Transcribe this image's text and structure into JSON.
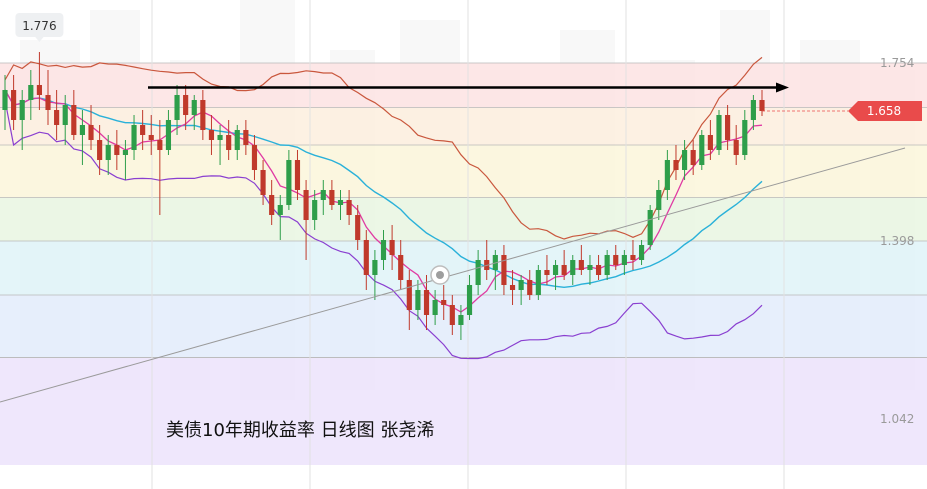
{
  "caption": "美债10年期收益率 日线图 张尧浠",
  "colors": {
    "up": "#2e9e4a",
    "down": "#c0392b",
    "ma_fast": "#e03aa3",
    "ma_slow": "#2ab1d9",
    "boll_upper": "#c9573d",
    "boll_lower": "#8a3fd0",
    "trend_arrow": "#000000",
    "trendline": "#9a9a9a",
    "current_badge": "#e94b4b"
  },
  "chart_data": {
    "type": "candlestick",
    "title": "美债10年期收益率 日线图 张尧浠",
    "timeframe": "日线",
    "ylim": [
      0.95,
      1.88
    ],
    "fib_levels": [
      {
        "value": 1.754,
        "label": "1.754"
      },
      {
        "value": 1.398,
        "label": "1.398"
      },
      {
        "value": 1.042,
        "label": "1.042"
      }
    ],
    "annotations": {
      "high_marker": "1.776",
      "current_price": "1.658"
    },
    "horizontal_arrow_level": 1.705,
    "candles": [
      {
        "o": 1.66,
        "h": 1.73,
        "l": 1.62,
        "c": 1.7
      },
      {
        "o": 1.7,
        "h": 1.73,
        "l": 1.62,
        "c": 1.64
      },
      {
        "o": 1.64,
        "h": 1.7,
        "l": 1.58,
        "c": 1.68
      },
      {
        "o": 1.68,
        "h": 1.74,
        "l": 1.64,
        "c": 1.71
      },
      {
        "o": 1.71,
        "h": 1.776,
        "l": 1.66,
        "c": 1.69
      },
      {
        "o": 1.69,
        "h": 1.74,
        "l": 1.63,
        "c": 1.66
      },
      {
        "o": 1.66,
        "h": 1.7,
        "l": 1.6,
        "c": 1.63
      },
      {
        "o": 1.63,
        "h": 1.69,
        "l": 1.59,
        "c": 1.67
      },
      {
        "o": 1.67,
        "h": 1.7,
        "l": 1.6,
        "c": 1.61
      },
      {
        "o": 1.61,
        "h": 1.66,
        "l": 1.55,
        "c": 1.63
      },
      {
        "o": 1.63,
        "h": 1.67,
        "l": 1.58,
        "c": 1.6
      },
      {
        "o": 1.6,
        "h": 1.63,
        "l": 1.53,
        "c": 1.56
      },
      {
        "o": 1.56,
        "h": 1.61,
        "l": 1.53,
        "c": 1.59
      },
      {
        "o": 1.59,
        "h": 1.62,
        "l": 1.54,
        "c": 1.57
      },
      {
        "o": 1.57,
        "h": 1.6,
        "l": 1.52,
        "c": 1.58
      },
      {
        "o": 1.58,
        "h": 1.65,
        "l": 1.56,
        "c": 1.63
      },
      {
        "o": 1.63,
        "h": 1.66,
        "l": 1.58,
        "c": 1.61
      },
      {
        "o": 1.61,
        "h": 1.65,
        "l": 1.57,
        "c": 1.6
      },
      {
        "o": 1.6,
        "h": 1.64,
        "l": 1.45,
        "c": 1.58
      },
      {
        "o": 1.58,
        "h": 1.66,
        "l": 1.57,
        "c": 1.64
      },
      {
        "o": 1.64,
        "h": 1.71,
        "l": 1.61,
        "c": 1.69
      },
      {
        "o": 1.69,
        "h": 1.71,
        "l": 1.62,
        "c": 1.65
      },
      {
        "o": 1.65,
        "h": 1.69,
        "l": 1.62,
        "c": 1.68
      },
      {
        "o": 1.68,
        "h": 1.7,
        "l": 1.6,
        "c": 1.62
      },
      {
        "o": 1.62,
        "h": 1.65,
        "l": 1.57,
        "c": 1.6
      },
      {
        "o": 1.6,
        "h": 1.63,
        "l": 1.55,
        "c": 1.61
      },
      {
        "o": 1.61,
        "h": 1.64,
        "l": 1.56,
        "c": 1.58
      },
      {
        "o": 1.58,
        "h": 1.63,
        "l": 1.56,
        "c": 1.62
      },
      {
        "o": 1.62,
        "h": 1.64,
        "l": 1.57,
        "c": 1.59
      },
      {
        "o": 1.59,
        "h": 1.61,
        "l": 1.52,
        "c": 1.54
      },
      {
        "o": 1.54,
        "h": 1.56,
        "l": 1.47,
        "c": 1.49
      },
      {
        "o": 1.49,
        "h": 1.52,
        "l": 1.43,
        "c": 1.45
      },
      {
        "o": 1.45,
        "h": 1.49,
        "l": 1.4,
        "c": 1.47
      },
      {
        "o": 1.47,
        "h": 1.58,
        "l": 1.46,
        "c": 1.56
      },
      {
        "o": 1.56,
        "h": 1.58,
        "l": 1.48,
        "c": 1.5
      },
      {
        "o": 1.5,
        "h": 1.52,
        "l": 1.36,
        "c": 1.44
      },
      {
        "o": 1.44,
        "h": 1.5,
        "l": 1.42,
        "c": 1.48
      },
      {
        "o": 1.48,
        "h": 1.52,
        "l": 1.45,
        "c": 1.5
      },
      {
        "o": 1.5,
        "h": 1.52,
        "l": 1.46,
        "c": 1.47
      },
      {
        "o": 1.47,
        "h": 1.5,
        "l": 1.44,
        "c": 1.48
      },
      {
        "o": 1.48,
        "h": 1.5,
        "l": 1.43,
        "c": 1.45
      },
      {
        "o": 1.45,
        "h": 1.47,
        "l": 1.38,
        "c": 1.4
      },
      {
        "o": 1.4,
        "h": 1.42,
        "l": 1.3,
        "c": 1.33
      },
      {
        "o": 1.33,
        "h": 1.38,
        "l": 1.28,
        "c": 1.36
      },
      {
        "o": 1.36,
        "h": 1.42,
        "l": 1.34,
        "c": 1.4
      },
      {
        "o": 1.4,
        "h": 1.43,
        "l": 1.34,
        "c": 1.37
      },
      {
        "o": 1.37,
        "h": 1.4,
        "l": 1.3,
        "c": 1.32
      },
      {
        "o": 1.32,
        "h": 1.34,
        "l": 1.22,
        "c": 1.26
      },
      {
        "o": 1.26,
        "h": 1.32,
        "l": 1.24,
        "c": 1.3
      },
      {
        "o": 1.3,
        "h": 1.33,
        "l": 1.22,
        "c": 1.25
      },
      {
        "o": 1.25,
        "h": 1.3,
        "l": 1.23,
        "c": 1.28
      },
      {
        "o": 1.28,
        "h": 1.31,
        "l": 1.24,
        "c": 1.27
      },
      {
        "o": 1.27,
        "h": 1.29,
        "l": 1.21,
        "c": 1.23
      },
      {
        "o": 1.23,
        "h": 1.27,
        "l": 1.2,
        "c": 1.25
      },
      {
        "o": 1.25,
        "h": 1.33,
        "l": 1.24,
        "c": 1.31
      },
      {
        "o": 1.31,
        "h": 1.38,
        "l": 1.29,
        "c": 1.36
      },
      {
        "o": 1.36,
        "h": 1.4,
        "l": 1.32,
        "c": 1.34
      },
      {
        "o": 1.34,
        "h": 1.38,
        "l": 1.3,
        "c": 1.37
      },
      {
        "o": 1.37,
        "h": 1.39,
        "l": 1.29,
        "c": 1.31
      },
      {
        "o": 1.31,
        "h": 1.34,
        "l": 1.27,
        "c": 1.3
      },
      {
        "o": 1.3,
        "h": 1.33,
        "l": 1.27,
        "c": 1.32
      },
      {
        "o": 1.32,
        "h": 1.34,
        "l": 1.28,
        "c": 1.29
      },
      {
        "o": 1.29,
        "h": 1.35,
        "l": 1.28,
        "c": 1.34
      },
      {
        "o": 1.34,
        "h": 1.37,
        "l": 1.31,
        "c": 1.33
      },
      {
        "o": 1.33,
        "h": 1.36,
        "l": 1.3,
        "c": 1.35
      },
      {
        "o": 1.35,
        "h": 1.38,
        "l": 1.32,
        "c": 1.33
      },
      {
        "o": 1.33,
        "h": 1.37,
        "l": 1.31,
        "c": 1.36
      },
      {
        "o": 1.36,
        "h": 1.39,
        "l": 1.33,
        "c": 1.34
      },
      {
        "o": 1.34,
        "h": 1.37,
        "l": 1.31,
        "c": 1.35
      },
      {
        "o": 1.35,
        "h": 1.37,
        "l": 1.32,
        "c": 1.33
      },
      {
        "o": 1.33,
        "h": 1.38,
        "l": 1.32,
        "c": 1.37
      },
      {
        "o": 1.37,
        "h": 1.39,
        "l": 1.34,
        "c": 1.35
      },
      {
        "o": 1.35,
        "h": 1.38,
        "l": 1.33,
        "c": 1.37
      },
      {
        "o": 1.37,
        "h": 1.4,
        "l": 1.34,
        "c": 1.36
      },
      {
        "o": 1.36,
        "h": 1.4,
        "l": 1.35,
        "c": 1.39
      },
      {
        "o": 1.39,
        "h": 1.47,
        "l": 1.38,
        "c": 1.46
      },
      {
        "o": 1.46,
        "h": 1.52,
        "l": 1.44,
        "c": 1.5
      },
      {
        "o": 1.5,
        "h": 1.58,
        "l": 1.48,
        "c": 1.56
      },
      {
        "o": 1.56,
        "h": 1.59,
        "l": 1.52,
        "c": 1.54
      },
      {
        "o": 1.54,
        "h": 1.6,
        "l": 1.52,
        "c": 1.58
      },
      {
        "o": 1.58,
        "h": 1.6,
        "l": 1.53,
        "c": 1.55
      },
      {
        "o": 1.55,
        "h": 1.62,
        "l": 1.54,
        "c": 1.61
      },
      {
        "o": 1.61,
        "h": 1.64,
        "l": 1.56,
        "c": 1.58
      },
      {
        "o": 1.58,
        "h": 1.66,
        "l": 1.57,
        "c": 1.65
      },
      {
        "o": 1.65,
        "h": 1.67,
        "l": 1.58,
        "c": 1.6
      },
      {
        "o": 1.6,
        "h": 1.63,
        "l": 1.55,
        "c": 1.57
      },
      {
        "o": 1.57,
        "h": 1.66,
        "l": 1.56,
        "c": 1.64
      },
      {
        "o": 1.64,
        "h": 1.69,
        "l": 1.62,
        "c": 1.68
      },
      {
        "o": 1.68,
        "h": 1.7,
        "l": 1.648,
        "c": 1.658
      }
    ]
  }
}
